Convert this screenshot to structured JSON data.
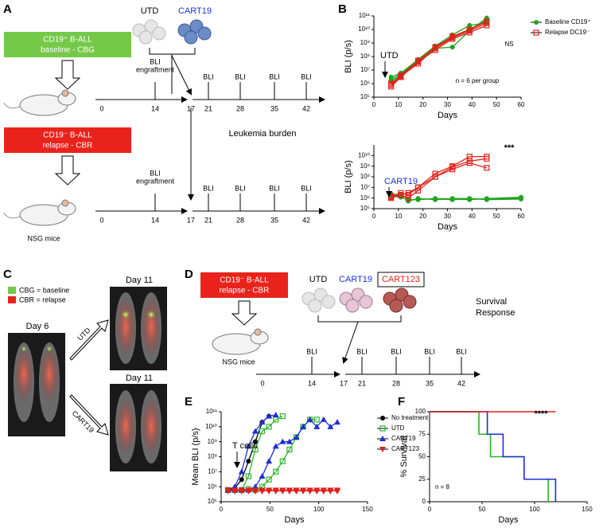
{
  "panels": {
    "letters": [
      "A",
      "B",
      "C",
      "D",
      "E",
      "F"
    ],
    "A": {
      "baseline_box": [
        "CD19⁺ B-ALL",
        "baseline - CBG"
      ],
      "relapse_box": [
        "CD19⁻ B-ALL",
        "relapse - CBR"
      ],
      "cells": [
        "UTD",
        "CART19"
      ],
      "engraftment": [
        "BLI",
        "engraftment"
      ],
      "bli": "BLI",
      "timeline_days": [
        0,
        14,
        17,
        21,
        28,
        35,
        42
      ],
      "leukemia_burden": "Leukemia burden",
      "mice": "NSG mice"
    },
    "C": {
      "legend": [
        "CBG = baseline",
        "CBR = relapse"
      ],
      "day_before": "Day 6",
      "day_after": [
        "Day 11",
        "Day 11"
      ],
      "arrows": [
        "UTD",
        "CART19"
      ]
    },
    "D": {
      "relapse_box": [
        "CD19⁻ B-ALL",
        "relapse - CBR"
      ],
      "cells": [
        "UTD",
        "CART19",
        "CART123"
      ],
      "bli": "BLI",
      "timeline_days": [
        0,
        14,
        17,
        21,
        28,
        35,
        42
      ],
      "outcome": [
        "Survival",
        "Response"
      ],
      "mice": "NSG mice"
    }
  },
  "chart_data": [
    {
      "type": "line",
      "log": true,
      "ylabel": "BLI (p/s)",
      "xlabel": "Days",
      "x": [
        7,
        11,
        18,
        25,
        32,
        39,
        46
      ],
      "xlim": [
        0,
        60
      ],
      "xticks": [
        0,
        10,
        20,
        30,
        40,
        50,
        60
      ],
      "ylim": [
        100000,
        100000000000
      ],
      "yticks": [
        {
          "value": 100000,
          "label": "10⁵"
        },
        {
          "value": 1000000,
          "label": "10⁶"
        },
        {
          "value": 10000000,
          "label": "10⁷"
        },
        {
          "value": 100000000,
          "label": "10⁸"
        },
        {
          "value": 1000000000,
          "label": "10⁹"
        },
        {
          "value": 10000000000,
          "label": "10¹⁰"
        },
        {
          "value": 100000000000,
          "label": "10¹¹"
        }
      ],
      "legend": "right",
      "annotations": [
        "UTD",
        "NS",
        "n = 6 per group"
      ],
      "series": [
        {
          "name": "Baseline CD19⁺",
          "color": "#1fa51f",
          "marker": "circle",
          "replicates": [
            [
              2000000,
              5000000,
              50000000,
              500000000,
              3000000000,
              10000000000,
              50000000000
            ],
            [
              1500000,
              4000000,
              40000000,
              400000000,
              500000000,
              8000000000,
              70000000000
            ],
            [
              3000000,
              6000000,
              60000000,
              600000000,
              4000000000,
              20000000000,
              30000000000
            ]
          ]
        },
        {
          "name": "Relapse DC19⁻",
          "color": "#e0201b",
          "marker": "square",
          "replicates": [
            [
              600000,
              3000000,
              40000000,
              300000000,
              2000000000,
              6000000000,
              20000000000
            ],
            [
              1000000,
              4000000,
              50000000,
              500000000,
              3000000000,
              10000000000,
              40000000000
            ],
            [
              800000,
              3500000,
              30000000,
              400000000,
              2500000000,
              8000000000,
              30000000000
            ]
          ]
        }
      ]
    },
    {
      "type": "line",
      "log": true,
      "ylabel": "BLI (p/s)",
      "xlabel": "Days",
      "x": [
        7,
        11,
        14,
        18,
        25,
        32,
        39,
        46,
        60
      ],
      "xlim": [
        0,
        60
      ],
      "xticks": [
        0,
        10,
        20,
        30,
        40,
        50,
        60
      ],
      "ylim": [
        100000,
        100000000000
      ],
      "yticks": [
        {
          "value": 100000,
          "label": "10⁵"
        },
        {
          "value": 1000000,
          "label": "10⁶"
        },
        {
          "value": 10000000,
          "label": "10⁷"
        },
        {
          "value": 100000000,
          "label": "10⁸"
        },
        {
          "value": 1000000000,
          "label": "10⁹"
        },
        {
          "value": 10000000000,
          "label": "10¹⁰"
        }
      ],
      "annotations": [
        "CART19",
        "***"
      ],
      "series": [
        {
          "color": "#1fa51f",
          "marker": "circle",
          "replicates": [
            [
              2000000,
              1500000,
              600000,
              800000,
              800000,
              700000,
              800000,
              800000,
              1000000
            ],
            [
              1500000,
              1200000,
              700000,
              700000,
              900000,
              800000,
              700000,
              900000,
              1200000
            ],
            [
              2500000,
              1800000,
              500000,
              900000,
              700000,
              900000,
              900000,
              700000,
              800000
            ]
          ]
        },
        {
          "color": "#e0201b",
          "marker": "square",
          "replicates": [
            [
              1500000,
              3000000,
              2000000,
              10000000,
              100000000,
              800000000,
              3000000000,
              5000000000,
              null
            ],
            [
              1000000,
              2000000,
              3000000,
              10000000,
              200000000,
              1000000000,
              8000000000,
              8000000000,
              null
            ],
            [
              1200000,
              2000000,
              1000000,
              5000000,
              100000000,
              500000000,
              2000000000,
              700000000,
              null
            ]
          ]
        }
      ]
    },
    {
      "type": "line",
      "log": true,
      "ylabel": "Mean BLI (p/s)",
      "xlabel": "Days",
      "x": [
        7,
        14,
        21,
        28,
        35,
        42,
        49,
        56,
        63,
        70,
        77,
        84,
        91,
        98,
        105,
        112,
        119
      ],
      "xlim": [
        0,
        150
      ],
      "xticks": [
        0,
        50,
        100,
        150
      ],
      "ylim": [
        100000,
        100000000000
      ],
      "yticks": [
        {
          "value": 100000,
          "label": "10⁵"
        },
        {
          "value": 1000000,
          "label": "10⁶"
        },
        {
          "value": 10000000,
          "label": "10⁷"
        },
        {
          "value": 100000000,
          "label": "10⁸"
        },
        {
          "value": 1000000000,
          "label": "10⁹"
        },
        {
          "value": 10000000000,
          "label": "10¹⁰"
        },
        {
          "value": 100000000000,
          "label": "10¹¹"
        }
      ],
      "legend": "right",
      "annotations": [
        "T cells"
      ],
      "series": [
        {
          "name": "No treatment",
          "color": "#000000",
          "marker": "circle",
          "replicates": [
            [
              600000,
              800000,
              3000000,
              50000000,
              1000000000,
              20000000000,
              50000000000,
              null,
              null,
              null,
              null,
              null,
              null,
              null,
              null,
              null,
              null
            ]
          ]
        },
        {
          "name": "UTD",
          "color": "#2bb52b",
          "marker": "square",
          "replicates": [
            [
              600000,
              600000,
              600000,
              5000000,
              300000000,
              5000000000,
              10000000000,
              30000000000,
              50000000000,
              null,
              null,
              null,
              null,
              null,
              null,
              null,
              null
            ],
            [
              600000,
              600000,
              600000,
              700000,
              600000,
              1000000,
              3000000,
              10000000,
              50000000,
              300000000,
              2000000000,
              10000000000,
              30000000000,
              30000000000,
              null,
              null,
              null
            ]
          ]
        },
        {
          "name": "CART19",
          "color": "#1f2fd0",
          "marker": "triangle",
          "replicates": [
            [
              600000,
              1000000,
              10000000,
              500000000,
              5000000000,
              20000000000,
              50000000000,
              60000000000,
              null,
              null,
              null,
              null,
              null,
              null,
              null,
              null,
              null
            ],
            [
              600000,
              600000,
              600000,
              600000,
              1000000,
              5000000,
              50000000,
              500000000,
              1000000000,
              1000000000,
              2000000000,
              10000000000,
              30000000000,
              10000000000,
              30000000000,
              10000000000,
              20000000000
            ]
          ]
        },
        {
          "name": "CART123",
          "color": "#e0201b",
          "marker": "down-triangle",
          "replicates": [
            [
              600000,
              500000,
              600000,
              500000,
              600000,
              500000,
              600000,
              500000,
              600000,
              500000,
              600000,
              500000,
              600000,
              500000,
              600000,
              500000,
              600000
            ],
            [
              500000,
              600000,
              500000,
              600000,
              500000,
              600000,
              500000,
              600000,
              500000,
              600000,
              500000,
              600000,
              500000,
              600000,
              500000,
              600000,
              500000
            ]
          ]
        }
      ]
    },
    {
      "type": "step",
      "log": false,
      "ylabel": "% Survival",
      "xlabel": "Days",
      "xlim": [
        0,
        150
      ],
      "xticks": [
        0,
        50,
        100,
        150
      ],
      "ylim": [
        0,
        100
      ],
      "yticks": [
        0,
        25,
        50,
        75,
        100
      ],
      "annotations": [
        "****",
        "n = 8"
      ],
      "series": [
        {
          "color": "#2bb52b",
          "x": [
            0,
            47,
            58,
            90,
            113
          ],
          "values": [
            100,
            75,
            50,
            25,
            0
          ]
        },
        {
          "color": "#1f2fd0",
          "x": [
            0,
            55,
            70,
            90,
            120
          ],
          "values": [
            100,
            75,
            50,
            25,
            0
          ]
        },
        {
          "color": "#e0201b",
          "x": [
            0,
            120
          ],
          "values": [
            100,
            100
          ]
        }
      ]
    }
  ]
}
